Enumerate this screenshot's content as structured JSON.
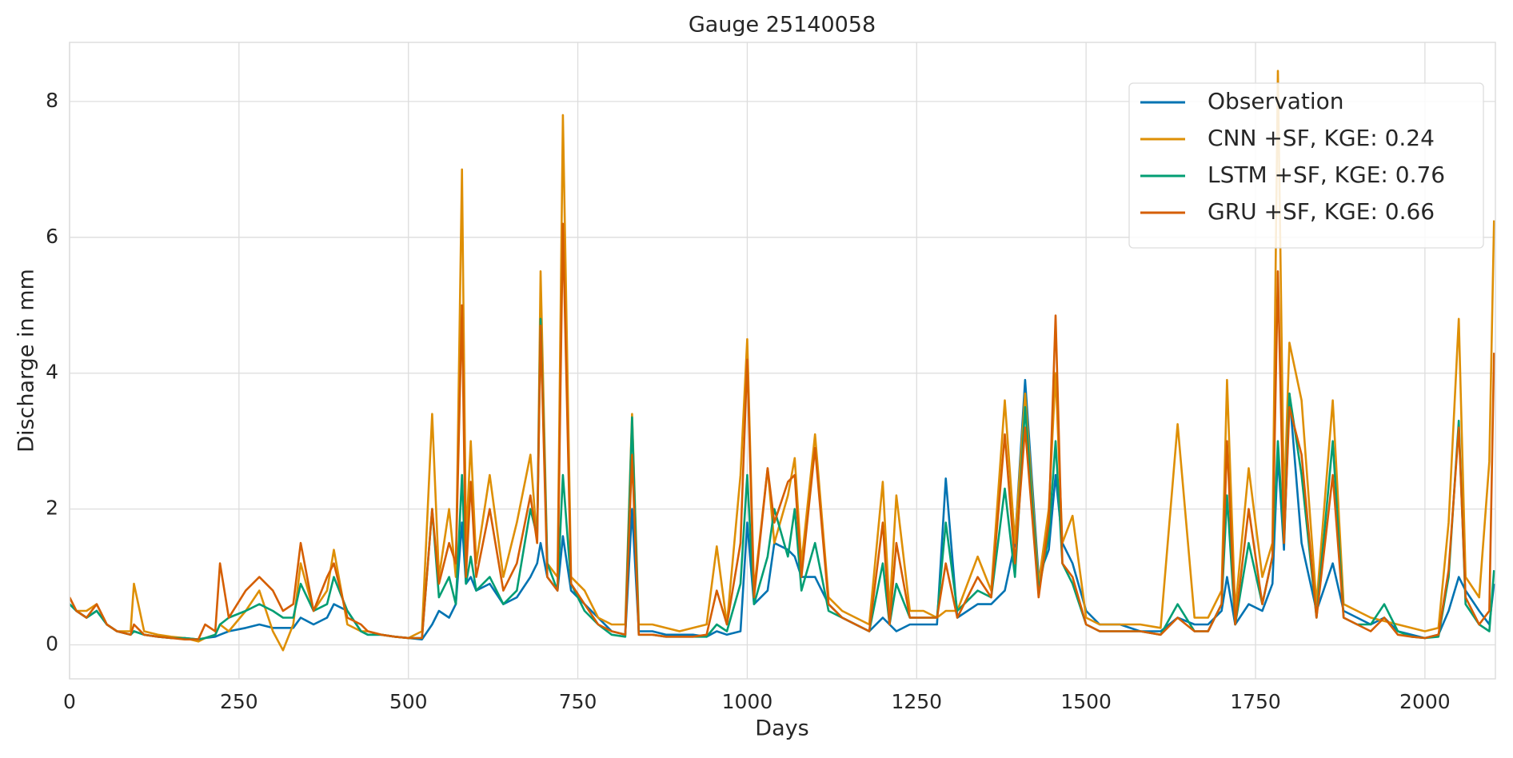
{
  "chart_data": {
    "type": "line",
    "title": "Gauge 25140058",
    "x_label": "Days",
    "y_label": "Discharge in mm",
    "x": [
      0,
      10,
      25,
      40,
      55,
      70,
      90,
      95,
      110,
      130,
      150,
      170,
      190,
      200,
      215,
      222,
      235,
      260,
      280,
      300,
      315,
      330,
      341,
      360,
      380,
      390,
      410,
      430,
      440,
      460,
      480,
      500,
      520,
      535,
      545,
      560,
      570,
      579,
      585,
      592,
      600,
      620,
      640,
      660,
      680,
      690,
      695,
      705,
      720,
      728,
      740,
      760,
      780,
      800,
      820,
      830,
      840,
      860,
      880,
      900,
      920,
      940,
      955,
      970,
      990,
      1000,
      1010,
      1030,
      1040,
      1060,
      1070,
      1080,
      1100,
      1120,
      1140,
      1160,
      1180,
      1200,
      1210,
      1220,
      1240,
      1260,
      1280,
      1293,
      1310,
      1340,
      1360,
      1380,
      1395,
      1410,
      1430,
      1445,
      1455,
      1465,
      1480,
      1500,
      1520,
      1550,
      1580,
      1610,
      1635,
      1660,
      1680,
      1700,
      1708,
      1720,
      1740,
      1760,
      1775,
      1783,
      1792,
      1800,
      1818,
      1840,
      1864,
      1880,
      1900,
      1920,
      1940,
      1960,
      1980,
      2000,
      2020,
      2035,
      2050,
      2060,
      2080,
      2095,
      2102
    ],
    "series": [
      {
        "name": "Observation",
        "color": "#0173b2",
        "values": [
          0.6,
          0.5,
          0.4,
          0.5,
          0.3,
          0.2,
          0.15,
          0.2,
          0.15,
          0.12,
          0.1,
          0.1,
          0.08,
          0.1,
          0.12,
          0.15,
          0.2,
          0.25,
          0.3,
          0.25,
          0.25,
          0.25,
          0.4,
          0.3,
          0.4,
          0.6,
          0.5,
          0.2,
          0.15,
          0.15,
          0.12,
          0.1,
          0.08,
          0.3,
          0.5,
          0.4,
          0.6,
          1.8,
          0.9,
          1.0,
          0.8,
          0.9,
          0.6,
          0.7,
          1.0,
          1.2,
          1.5,
          1.0,
          0.8,
          1.6,
          0.8,
          0.6,
          0.4,
          0.2,
          0.15,
          2.0,
          0.2,
          0.2,
          0.15,
          0.15,
          0.15,
          0.12,
          0.2,
          0.15,
          0.2,
          1.8,
          0.6,
          0.8,
          1.5,
          1.4,
          1.3,
          1.0,
          1.0,
          0.6,
          0.4,
          0.3,
          0.2,
          0.4,
          0.3,
          0.2,
          0.3,
          0.3,
          0.3,
          2.45,
          0.4,
          0.6,
          0.6,
          0.8,
          1.5,
          3.9,
          1.0,
          1.4,
          2.5,
          1.5,
          1.2,
          0.5,
          0.3,
          0.3,
          0.2,
          0.2,
          0.4,
          0.3,
          0.3,
          0.5,
          1.0,
          0.3,
          0.6,
          0.5,
          0.9,
          2.8,
          1.4,
          3.7,
          1.5,
          0.5,
          1.2,
          0.5,
          0.4,
          0.3,
          0.4,
          0.2,
          0.15,
          0.1,
          0.15,
          0.5,
          1.0,
          0.8,
          0.5,
          0.3,
          0.9
        ]
      },
      {
        "name": "CNN +SF, KGE: 0.24",
        "color": "#de8f05",
        "values": [
          0.7,
          0.5,
          0.5,
          0.6,
          0.3,
          0.2,
          0.2,
          0.9,
          0.2,
          0.15,
          0.12,
          0.1,
          0.05,
          0.1,
          0.15,
          0.3,
          0.2,
          0.5,
          0.8,
          0.2,
          -0.08,
          0.3,
          1.2,
          0.5,
          0.8,
          1.4,
          0.3,
          0.2,
          0.2,
          0.15,
          0.12,
          0.1,
          0.2,
          3.4,
          1.0,
          2.0,
          1.0,
          7.0,
          1.5,
          3.0,
          1.2,
          2.5,
          1.0,
          1.8,
          2.8,
          1.5,
          5.5,
          1.2,
          1.0,
          7.8,
          1.0,
          0.8,
          0.4,
          0.3,
          0.3,
          3.4,
          0.3,
          0.3,
          0.25,
          0.2,
          0.25,
          0.3,
          1.45,
          0.3,
          2.5,
          4.5,
          0.8,
          2.6,
          1.5,
          2.2,
          2.75,
          1.2,
          3.1,
          0.7,
          0.5,
          0.4,
          0.3,
          2.4,
          0.5,
          2.2,
          0.5,
          0.5,
          0.4,
          0.5,
          0.5,
          1.3,
          0.8,
          3.6,
          1.5,
          3.7,
          0.9,
          2.0,
          4.0,
          1.5,
          1.9,
          0.4,
          0.3,
          0.3,
          0.3,
          0.25,
          3.25,
          0.4,
          0.4,
          0.8,
          3.9,
          0.5,
          2.6,
          1.0,
          1.5,
          8.45,
          2.0,
          4.45,
          3.6,
          0.6,
          3.6,
          0.6,
          0.5,
          0.4,
          0.35,
          0.3,
          0.25,
          0.2,
          0.25,
          1.8,
          4.8,
          1.0,
          0.7,
          2.7,
          6.25
        ]
      },
      {
        "name": "LSTM +SF, KGE: 0.76",
        "color": "#029e73",
        "values": [
          0.6,
          0.5,
          0.4,
          0.5,
          0.3,
          0.2,
          0.15,
          0.2,
          0.15,
          0.12,
          0.1,
          0.1,
          0.08,
          0.1,
          0.15,
          0.3,
          0.4,
          0.5,
          0.6,
          0.5,
          0.4,
          0.4,
          0.9,
          0.5,
          0.6,
          1.0,
          0.5,
          0.2,
          0.15,
          0.15,
          0.12,
          0.1,
          0.1,
          2.0,
          0.7,
          1.0,
          0.6,
          2.5,
          0.9,
          1.3,
          0.8,
          1.0,
          0.6,
          0.8,
          2.0,
          1.6,
          4.8,
          1.2,
          0.8,
          2.5,
          0.9,
          0.5,
          0.3,
          0.15,
          0.12,
          3.35,
          0.15,
          0.15,
          0.12,
          0.12,
          0.12,
          0.12,
          0.3,
          0.2,
          0.9,
          2.5,
          0.6,
          1.3,
          2.0,
          1.3,
          2.0,
          0.8,
          1.5,
          0.5,
          0.4,
          0.3,
          0.2,
          1.2,
          0.3,
          0.9,
          0.4,
          0.4,
          0.4,
          1.8,
          0.5,
          0.8,
          0.7,
          2.3,
          1.0,
          3.5,
          0.8,
          1.6,
          3.0,
          1.2,
          0.9,
          0.3,
          0.2,
          0.2,
          0.2,
          0.15,
          0.6,
          0.2,
          0.2,
          0.6,
          2.2,
          0.3,
          1.5,
          0.6,
          1.3,
          3.0,
          1.5,
          3.7,
          2.5,
          0.4,
          3.0,
          0.4,
          0.3,
          0.3,
          0.6,
          0.2,
          0.12,
          0.1,
          0.12,
          1.0,
          3.3,
          0.6,
          0.3,
          0.2,
          1.1
        ]
      },
      {
        "name": "GRU +SF, KGE: 0.66",
        "color": "#d55e00",
        "values": [
          0.7,
          0.5,
          0.4,
          0.6,
          0.3,
          0.2,
          0.15,
          0.3,
          0.15,
          0.12,
          0.1,
          0.08,
          0.08,
          0.3,
          0.2,
          1.2,
          0.4,
          0.8,
          1.0,
          0.8,
          0.5,
          0.6,
          1.5,
          0.5,
          1.0,
          1.2,
          0.4,
          0.3,
          0.2,
          0.15,
          0.12,
          0.1,
          0.1,
          2.0,
          0.9,
          1.5,
          1.2,
          5.0,
          1.0,
          2.4,
          1.0,
          2.0,
          0.8,
          1.2,
          2.2,
          1.5,
          4.7,
          1.0,
          0.8,
          6.2,
          0.9,
          0.6,
          0.3,
          0.2,
          0.15,
          2.8,
          0.15,
          0.15,
          0.12,
          0.12,
          0.12,
          0.15,
          0.8,
          0.3,
          1.5,
          4.2,
          0.7,
          2.6,
          1.8,
          2.4,
          2.5,
          1.0,
          2.9,
          0.6,
          0.4,
          0.3,
          0.2,
          1.8,
          0.3,
          1.5,
          0.4,
          0.4,
          0.4,
          1.2,
          0.4,
          1.0,
          0.7,
          3.1,
          1.2,
          3.2,
          0.7,
          1.8,
          4.85,
          1.2,
          1.0,
          0.3,
          0.2,
          0.2,
          0.2,
          0.15,
          0.4,
          0.2,
          0.2,
          0.6,
          3.0,
          0.3,
          2.0,
          0.6,
          1.3,
          5.5,
          1.5,
          3.5,
          2.8,
          0.4,
          2.5,
          0.4,
          0.3,
          0.2,
          0.4,
          0.15,
          0.12,
          0.1,
          0.15,
          1.1,
          3.2,
          0.7,
          0.3,
          0.5,
          4.3
        ]
      }
    ],
    "xlim": [
      0,
      2104
    ],
    "ylim": [
      -0.5,
      8.87
    ],
    "xticks": [
      0,
      250,
      500,
      750,
      1000,
      1250,
      1500,
      1750,
      2000
    ],
    "yticks": [
      0,
      2,
      4,
      6,
      8
    ],
    "grid": true,
    "legend": "upper right"
  }
}
